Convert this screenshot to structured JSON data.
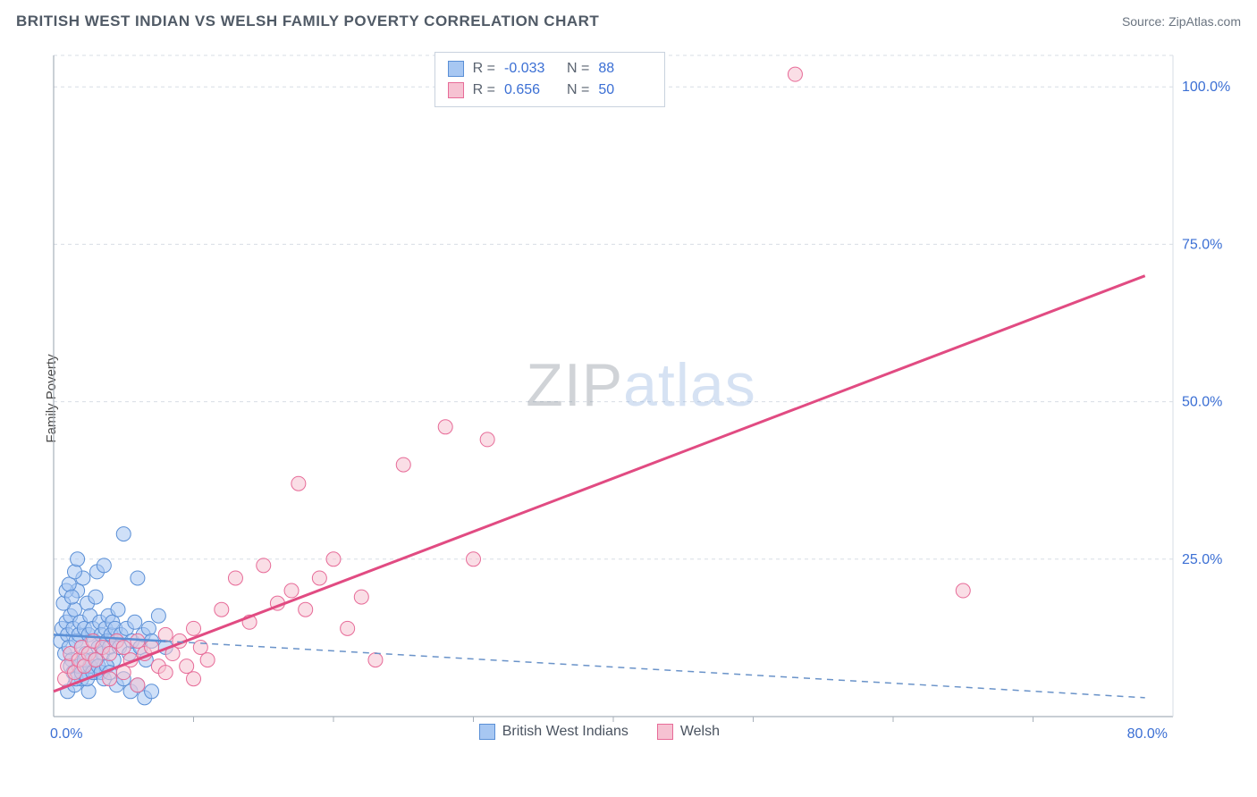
{
  "title": "BRITISH WEST INDIAN VS WELSH FAMILY POVERTY CORRELATION CHART",
  "source": "Source: ZipAtlas.com",
  "yaxis_label": "Family Poverty",
  "watermark": {
    "zip": "ZIP",
    "atlas": "atlas"
  },
  "colors": {
    "series_a_fill": "#a7c7f2",
    "series_a_stroke": "#5a8fd6",
    "series_b_fill": "#f6c2d2",
    "series_b_stroke": "#e76b98",
    "grid": "#d7dde5",
    "axis": "#a8b0ba",
    "tick_text": "#3b6fd4",
    "background": "#ffffff",
    "regression_b": "#e14b82",
    "regression_a_dash": "#6a93c9"
  },
  "chart": {
    "type": "scatter",
    "xlim": [
      0,
      80
    ],
    "ylim": [
      0,
      105
    ],
    "x_ticks": [
      0,
      80
    ],
    "x_tick_labels": [
      "0.0%",
      "80.0%"
    ],
    "x_minor_step": 10,
    "y_ticks": [
      25,
      50,
      75,
      100
    ],
    "y_tick_labels": [
      "25.0%",
      "50.0%",
      "75.0%",
      "100.0%"
    ],
    "marker_radius": 8,
    "marker_opacity": 0.55,
    "line_width_reg_b": 3,
    "line_width_reg_a": 1.5,
    "regression_b_line": {
      "x1": 0,
      "y1": 4,
      "x2": 78,
      "y2": 70
    },
    "regression_a_line": {
      "x1": 0,
      "y1": 13,
      "x2": 78,
      "y2": 3
    },
    "regression_a_solid_until_x": 8
  },
  "stats": {
    "rows": [
      {
        "swatch_fill": "#a7c7f2",
        "swatch_stroke": "#5a8fd6",
        "r_label": "R =",
        "r": "-0.033",
        "n_label": "N =",
        "n": "88"
      },
      {
        "swatch_fill": "#f6c2d2",
        "swatch_stroke": "#e76b98",
        "r_label": "R =",
        "r": "0.656",
        "n_label": "N =",
        "n": "50"
      }
    ]
  },
  "legend": {
    "items": [
      {
        "label": "British West Indians",
        "fill": "#a7c7f2",
        "stroke": "#5a8fd6"
      },
      {
        "label": "Welsh",
        "fill": "#f6c2d2",
        "stroke": "#e76b98"
      }
    ]
  },
  "series_a": [
    [
      0.5,
      12
    ],
    [
      0.6,
      14
    ],
    [
      0.8,
      10
    ],
    [
      0.9,
      15
    ],
    [
      1.0,
      13
    ],
    [
      1.1,
      11
    ],
    [
      1.2,
      16
    ],
    [
      1.3,
      9
    ],
    [
      1.4,
      14
    ],
    [
      1.5,
      17
    ],
    [
      1.6,
      12
    ],
    [
      1.7,
      20
    ],
    [
      1.8,
      13
    ],
    [
      1.9,
      15
    ],
    [
      2.0,
      11
    ],
    [
      2.1,
      22
    ],
    [
      2.2,
      14
    ],
    [
      2.3,
      10
    ],
    [
      2.4,
      18
    ],
    [
      2.5,
      13
    ],
    [
      2.6,
      16
    ],
    [
      2.7,
      9
    ],
    [
      2.8,
      14
    ],
    [
      2.9,
      12
    ],
    [
      3.0,
      19
    ],
    [
      3.1,
      23
    ],
    [
      3.2,
      11
    ],
    [
      3.3,
      15
    ],
    [
      3.4,
      13
    ],
    [
      3.5,
      10
    ],
    [
      3.6,
      24
    ],
    [
      3.7,
      14
    ],
    [
      3.8,
      12
    ],
    [
      3.9,
      16
    ],
    [
      4.0,
      11
    ],
    [
      4.1,
      13
    ],
    [
      4.2,
      15
    ],
    [
      4.3,
      9
    ],
    [
      4.4,
      14
    ],
    [
      4.5,
      12
    ],
    [
      4.6,
      17
    ],
    [
      4.7,
      11
    ],
    [
      4.8,
      13
    ],
    [
      5.0,
      29
    ],
    [
      5.2,
      14
    ],
    [
      5.4,
      10
    ],
    [
      5.6,
      12
    ],
    [
      5.8,
      15
    ],
    [
      6.0,
      22
    ],
    [
      6.2,
      11
    ],
    [
      6.4,
      13
    ],
    [
      6.6,
      9
    ],
    [
      6.8,
      14
    ],
    [
      7.0,
      12
    ],
    [
      7.5,
      16
    ],
    [
      8.0,
      11
    ],
    [
      1.0,
      4
    ],
    [
      1.5,
      5
    ],
    [
      2.0,
      6
    ],
    [
      2.5,
      4
    ],
    [
      3.0,
      7
    ],
    [
      0.7,
      18
    ],
    [
      0.9,
      20
    ],
    [
      1.1,
      21
    ],
    [
      1.3,
      19
    ],
    [
      1.5,
      23
    ],
    [
      1.7,
      25
    ],
    [
      1.2,
      8
    ],
    [
      1.4,
      7
    ],
    [
      1.6,
      6
    ],
    [
      1.8,
      8
    ],
    [
      2.0,
      7
    ],
    [
      2.2,
      9
    ],
    [
      2.4,
      6
    ],
    [
      2.6,
      8
    ],
    [
      2.8,
      7
    ],
    [
      3.0,
      9
    ],
    [
      3.2,
      8
    ],
    [
      3.4,
      7
    ],
    [
      3.6,
      6
    ],
    [
      3.8,
      8
    ],
    [
      4.0,
      7
    ],
    [
      4.5,
      5
    ],
    [
      5.0,
      6
    ],
    [
      5.5,
      4
    ],
    [
      6.0,
      5
    ],
    [
      6.5,
      3
    ],
    [
      7.0,
      4
    ]
  ],
  "series_b": [
    [
      0.8,
      6
    ],
    [
      1.0,
      8
    ],
    [
      1.2,
      10
    ],
    [
      1.5,
      7
    ],
    [
      1.8,
      9
    ],
    [
      2.0,
      11
    ],
    [
      2.2,
      8
    ],
    [
      2.5,
      10
    ],
    [
      2.8,
      12
    ],
    [
      3.0,
      9
    ],
    [
      3.5,
      11
    ],
    [
      4.0,
      10
    ],
    [
      4.5,
      12
    ],
    [
      5.0,
      11
    ],
    [
      5.5,
      9
    ],
    [
      6.0,
      12
    ],
    [
      6.5,
      10
    ],
    [
      7.0,
      11
    ],
    [
      7.5,
      8
    ],
    [
      8.0,
      13
    ],
    [
      8.5,
      10
    ],
    [
      9.0,
      12
    ],
    [
      9.5,
      8
    ],
    [
      10.0,
      14
    ],
    [
      10.5,
      11
    ],
    [
      11.0,
      9
    ],
    [
      12.0,
      17
    ],
    [
      13.0,
      22
    ],
    [
      14.0,
      15
    ],
    [
      15.0,
      24
    ],
    [
      16.0,
      18
    ],
    [
      17.0,
      20
    ],
    [
      18.0,
      17
    ],
    [
      19.0,
      22
    ],
    [
      20.0,
      25
    ],
    [
      21.0,
      14
    ],
    [
      22.0,
      19
    ],
    [
      23.0,
      9
    ],
    [
      17.5,
      37
    ],
    [
      25.0,
      40
    ],
    [
      28.0,
      46
    ],
    [
      30.0,
      25
    ],
    [
      31.0,
      44
    ],
    [
      53.0,
      102
    ],
    [
      65.0,
      20
    ],
    [
      4.0,
      6
    ],
    [
      5.0,
      7
    ],
    [
      6.0,
      5
    ],
    [
      8.0,
      7
    ],
    [
      10.0,
      6
    ]
  ]
}
